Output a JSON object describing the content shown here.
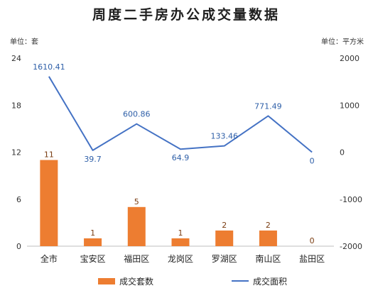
{
  "chart_data": {
    "type": "bar",
    "title": "周度二手房办公成交量数据",
    "categories": [
      "全市",
      "宝安区",
      "福田区",
      "龙岗区",
      "罗湖区",
      "南山区",
      "盐田区"
    ],
    "left_axis": {
      "unit_label": "单位：套",
      "ylim": [
        0,
        24
      ],
      "ticks": [
        "0",
        "6",
        "12",
        "18",
        "24"
      ]
    },
    "right_axis": {
      "unit_label": "单位：平方米",
      "ylim": [
        -2000,
        2000
      ],
      "ticks": [
        "-2000",
        "-1000",
        "0",
        "1000",
        "2000"
      ]
    },
    "series": [
      {
        "name": "成交套数",
        "type": "bar",
        "axis": "left",
        "values": [
          11,
          1,
          5,
          1,
          2,
          2,
          0
        ],
        "labels": [
          "11",
          "1",
          "5",
          "1",
          "2",
          "2",
          "0"
        ],
        "color": "#ED7D31"
      },
      {
        "name": "成交面积",
        "type": "line",
        "axis": "right",
        "values": [
          1610.41,
          39.7,
          600.86,
          64.9,
          133.46,
          771.49,
          0
        ],
        "labels": [
          "1610.41",
          "39.7",
          "600.86",
          "64.9",
          "133.46",
          "771.49",
          "0"
        ],
        "color": "#4472C4"
      }
    ],
    "grid": false,
    "legend": "bottom"
  }
}
